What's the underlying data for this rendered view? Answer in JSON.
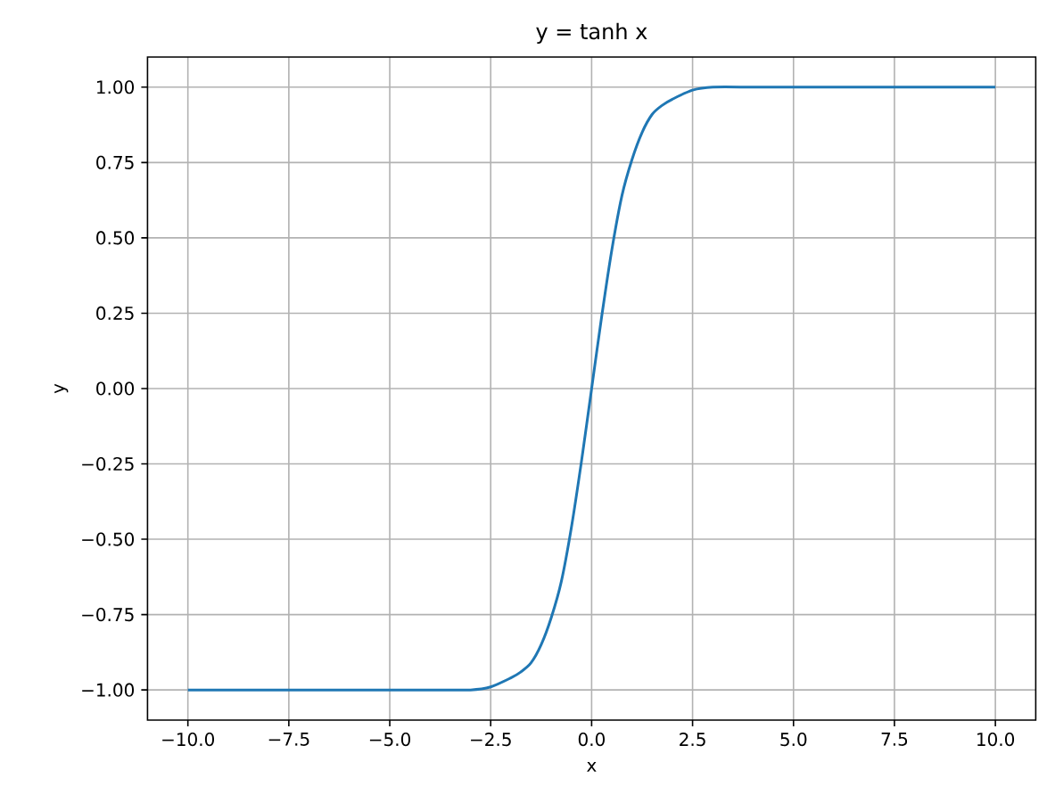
{
  "chart_data": {
    "type": "line",
    "title": "y = tanh x",
    "xlabel": "x",
    "ylabel": "y",
    "x": [
      -10,
      -5,
      -4,
      -3,
      -2.5,
      -2,
      -1.75,
      -1.5,
      -1.25,
      -1,
      -0.75,
      -0.5,
      -0.25,
      0,
      0.25,
      0.5,
      0.75,
      1,
      1.25,
      1.5,
      1.75,
      2,
      2.5,
      3,
      4,
      5,
      10
    ],
    "series": [
      {
        "color": "#1f77b4",
        "values": [
          -1.0,
          -1.0,
          -1.0,
          -1.0,
          -0.99,
          -0.96,
          -0.94,
          -0.91,
          -0.85,
          -0.76,
          -0.64,
          -0.46,
          -0.24,
          0.0,
          0.24,
          0.46,
          0.64,
          0.76,
          0.85,
          0.91,
          0.94,
          0.96,
          0.99,
          1.0,
          1.0,
          1.0,
          1.0
        ]
      }
    ],
    "xlim": [
      -11,
      11
    ],
    "ylim": [
      -1.1,
      1.1
    ],
    "xticks": [
      {
        "value": -10,
        "label": "−10.0"
      },
      {
        "value": -7.5,
        "label": "−7.5"
      },
      {
        "value": -5,
        "label": "−5.0"
      },
      {
        "value": -2.5,
        "label": "−2.5"
      },
      {
        "value": 0,
        "label": "0.0"
      },
      {
        "value": 2.5,
        "label": "2.5"
      },
      {
        "value": 5,
        "label": "5.0"
      },
      {
        "value": 7.5,
        "label": "7.5"
      },
      {
        "value": 10,
        "label": "10.0"
      }
    ],
    "yticks": [
      {
        "value": -1,
        "label": "−1.00"
      },
      {
        "value": -0.75,
        "label": "−0.75"
      },
      {
        "value": -0.5,
        "label": "−0.50"
      },
      {
        "value": -0.25,
        "label": "−0.25"
      },
      {
        "value": 0,
        "label": "0.00"
      },
      {
        "value": 0.25,
        "label": "0.25"
      },
      {
        "value": 0.5,
        "label": "0.50"
      },
      {
        "value": 0.75,
        "label": "0.75"
      },
      {
        "value": 1,
        "label": "1.00"
      }
    ],
    "grid": true,
    "marker": "none",
    "line_style": "solid"
  }
}
